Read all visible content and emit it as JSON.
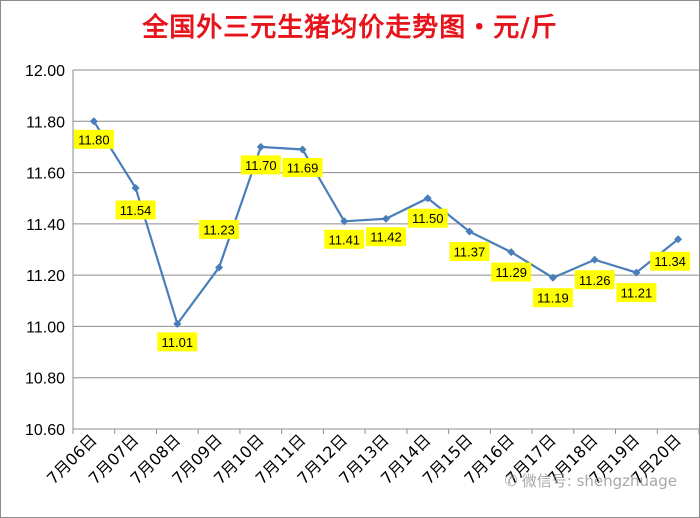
{
  "chart_data": {
    "type": "line",
    "title": "全国外三元生猪均价走势图・元/斤",
    "categories": [
      "7月06日",
      "7月07日",
      "7月08日",
      "7月09日",
      "7月10日",
      "7月11日",
      "7月12日",
      "7月13日",
      "7月14日",
      "7月15日",
      "7月16日",
      "7月17日",
      "7月18日",
      "7月19日",
      "7月20日"
    ],
    "series": [
      {
        "values": [
          11.8,
          11.54,
          11.01,
          11.23,
          11.7,
          11.69,
          11.41,
          11.42,
          11.5,
          11.37,
          11.29,
          11.19,
          11.26,
          11.21,
          11.34
        ]
      }
    ],
    "data_labels": [
      "11.80",
      "11.54",
      "11.01",
      "11.23",
      "11.70",
      "11.69",
      "11.41",
      "11.42",
      "11.50",
      "11.37",
      "11.29",
      "11.19",
      "11.26",
      "11.21",
      "11.34"
    ],
    "yticks": [
      "10.60",
      "10.80",
      "11.00",
      "11.20",
      "11.40",
      "11.60",
      "11.80",
      "12.00"
    ],
    "ylim": [
      10.6,
      12.0
    ],
    "grid": true,
    "legend": "none",
    "xlabel": "",
    "ylabel": ""
  },
  "colors": {
    "title": "#e8141c",
    "line": "#4a7ebb",
    "label_bg": "#ffff00",
    "grid": "#8c8c8c"
  },
  "watermark": {
    "text": "微信号: shengzhuage",
    "icon": "wechat-icon"
  }
}
